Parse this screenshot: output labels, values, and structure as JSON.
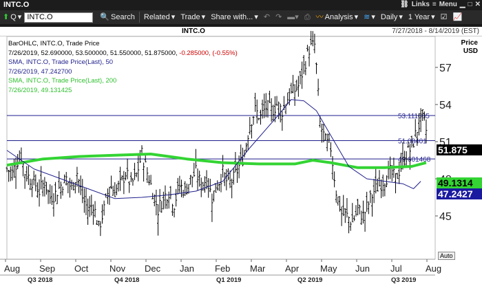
{
  "window": {
    "title": "INTC.O",
    "links_label": "Links",
    "menu_label": "Menu"
  },
  "toolbar": {
    "symbol_type": "Q",
    "symbol_value": "INTC.O",
    "search_label": "Search",
    "related_label": "Related",
    "trade_label": "Trade",
    "share_label": "Share with...",
    "analysis_label": "Analysis",
    "interval_label": "Daily",
    "period_label": "1 Year"
  },
  "chart_header": {
    "symbol": "INTC.O",
    "date_range": "7/27/2018 - 8/14/2019 (EST)"
  },
  "legend": {
    "line1": "BarOHLC, INTC.O, Trade Price",
    "line2_values": "7/26/2019, 52.690000, 53.500000, 51.550000, 51.875000,",
    "line2_change": "-0.285000, (-0.55%)",
    "line3": "SMA, INTC.O, Trade Price(Last), 50",
    "line4": "7/26/2019, 47.242700",
    "line5": "SMA, INTC.O, Trade Price(Last), 200",
    "line6": "7/26/2019, 49.131425"
  },
  "price_axis": {
    "title_line1": "Price",
    "title_line2": "USD",
    "auto_label": "Auto"
  },
  "tags": {
    "last": "51.875",
    "sma200": "49.1314",
    "sma50": "47.2427"
  },
  "level_labels": {
    "l1": "53.111605",
    "l2": "51.08401",
    "l3": "49.601468"
  },
  "colors": {
    "sma50": "#1e1e8c",
    "sma200": "#33d433",
    "bars": "#000000",
    "hline": "#1e1e8c"
  },
  "chart_data": {
    "type": "ohlc",
    "title": "INTC.O",
    "xlabel": "",
    "ylabel": "Price USD",
    "ylim": [
      41.5,
      59.5
    ],
    "y_ticks": [
      45,
      48,
      51,
      54,
      57
    ],
    "x_tick_labels": [
      "Aug",
      "Sep",
      "Oct",
      "Nov",
      "Dec",
      "Jan",
      "Feb",
      "Mar",
      "Apr",
      "May",
      "Jun",
      "Jul",
      "Aug"
    ],
    "quarter_labels": [
      "Q3 2018",
      "Q4 2018",
      "Q1 2019",
      "Q2 2019",
      "Q3 2019"
    ],
    "horizontal_levels": [
      53.111605,
      51.08401,
      49.601468
    ],
    "series": [
      {
        "name": "BarOHLC, INTC.O, Trade Price",
        "last": {
          "date": "7/26/2019",
          "open": 52.69,
          "high": 53.5,
          "low": 51.55,
          "close": 51.875,
          "change": -0.285,
          "change_pct": -0.55
        }
      },
      {
        "name": "SMA, INTC.O, Trade Price(Last), 50",
        "last": 47.2427
      },
      {
        "name": "SMA, INTC.O, Trade Price(Last), 200",
        "last": 49.131425
      }
    ],
    "close_path": [
      [
        0,
        48.8
      ],
      [
        3,
        48.5
      ],
      [
        6,
        49.5
      ],
      [
        8,
        49.8
      ],
      [
        10,
        48.5
      ],
      [
        13,
        48.0
      ],
      [
        16,
        47.5
      ],
      [
        18,
        47.0
      ],
      [
        21,
        47.8
      ],
      [
        24,
        46.5
      ],
      [
        27,
        46.8
      ],
      [
        30,
        47.5
      ],
      [
        33,
        48.0
      ],
      [
        36,
        47.2
      ],
      [
        39,
        48.5
      ],
      [
        42,
        46.5
      ],
      [
        45,
        45.5
      ],
      [
        48,
        46.0
      ],
      [
        51,
        44.0
      ],
      [
        54,
        45.5
      ],
      [
        57,
        47.5
      ],
      [
        60,
        47.0
      ],
      [
        63,
        47.5
      ],
      [
        66,
        48.5
      ],
      [
        69,
        47.5
      ],
      [
        72,
        48.3
      ],
      [
        75,
        50.0
      ],
      [
        78,
        48.5
      ],
      [
        81,
        47.0
      ],
      [
        84,
        45.5
      ],
      [
        87,
        46.5
      ],
      [
        90,
        47.0
      ],
      [
        93,
        46.0
      ],
      [
        96,
        47.5
      ],
      [
        99,
        47.0
      ],
      [
        102,
        48.0
      ],
      [
        105,
        48.5
      ],
      [
        108,
        47.5
      ],
      [
        111,
        48.0
      ],
      [
        114,
        46.5
      ],
      [
        117,
        47.5
      ],
      [
        120,
        48.5
      ],
      [
        123,
        47.5
      ],
      [
        126,
        48.0
      ],
      [
        129,
        49.0
      ],
      [
        132,
        50.0
      ],
      [
        135,
        52.5
      ],
      [
        138,
        53.5
      ],
      [
        141,
        53.0
      ],
      [
        144,
        53.8
      ],
      [
        147,
        53.5
      ],
      [
        150,
        54.0
      ],
      [
        153,
        53.5
      ],
      [
        156,
        54.5
      ],
      [
        159,
        55.0
      ],
      [
        162,
        55.5
      ],
      [
        165,
        57.0
      ],
      [
        168,
        58.5
      ],
      [
        171,
        58.8
      ],
      [
        172,
        57.0
      ],
      [
        174,
        52.5
      ],
      [
        177,
        51.0
      ],
      [
        180,
        50.5
      ],
      [
        183,
        47.0
      ],
      [
        186,
        45.2
      ],
      [
        189,
        45.0
      ],
      [
        192,
        44.5
      ],
      [
        195,
        45.5
      ],
      [
        198,
        45.0
      ],
      [
        201,
        46.0
      ],
      [
        204,
        47.0
      ],
      [
        207,
        47.5
      ],
      [
        210,
        48.0
      ],
      [
        213,
        48.5
      ],
      [
        216,
        48.0
      ],
      [
        219,
        49.0
      ],
      [
        222,
        50.0
      ],
      [
        225,
        50.5
      ],
      [
        228,
        52.0
      ],
      [
        231,
        53.0
      ],
      [
        233,
        51.9
      ]
    ],
    "sma50_path": [
      [
        0,
        50.3
      ],
      [
        15,
        48.8
      ],
      [
        30,
        48.0
      ],
      [
        45,
        47.2
      ],
      [
        60,
        46.4
      ],
      [
        75,
        46.5
      ],
      [
        90,
        46.7
      ],
      [
        105,
        47.0
      ],
      [
        120,
        47.8
      ],
      [
        135,
        50.5
      ],
      [
        150,
        53.0
      ],
      [
        158,
        54.4
      ],
      [
        165,
        54.3
      ],
      [
        172,
        53.5
      ],
      [
        180,
        51.5
      ],
      [
        190,
        49.0
      ],
      [
        200,
        48.0
      ],
      [
        210,
        47.8
      ],
      [
        220,
        47.6
      ],
      [
        226,
        47.2
      ],
      [
        230,
        47.8
      ]
    ],
    "sma200_path": [
      [
        0,
        49.1
      ],
      [
        20,
        49.6
      ],
      [
        40,
        49.8
      ],
      [
        60,
        49.9
      ],
      [
        80,
        50.0
      ],
      [
        100,
        49.6
      ],
      [
        120,
        49.3
      ],
      [
        140,
        49.2
      ],
      [
        160,
        49.2
      ],
      [
        170,
        49.5
      ],
      [
        180,
        49.3
      ],
      [
        195,
        48.9
      ],
      [
        210,
        48.9
      ],
      [
        225,
        49.0
      ],
      [
        233,
        49.3
      ]
    ]
  }
}
